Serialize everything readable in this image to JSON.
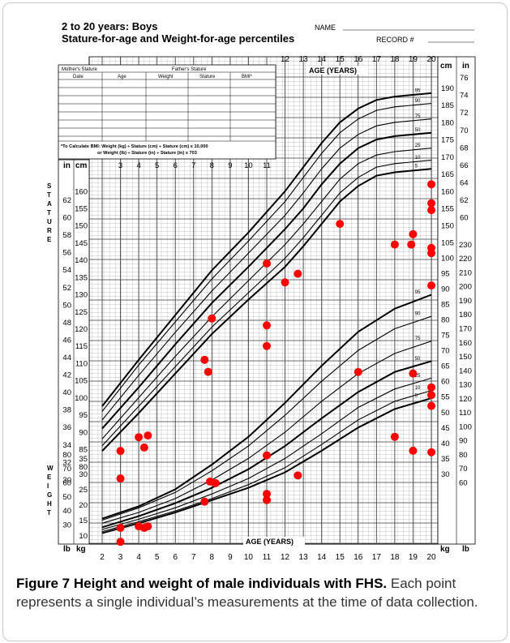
{
  "header": {
    "title_line1": "2 to 20 years: Boys",
    "title_line2": "Stature-for-age and Weight-for-age percentiles",
    "name_label": "NAME",
    "record_label": "RECORD #"
  },
  "table": {
    "top_labels": [
      "Mother's Stature",
      "Father's Stature"
    ],
    "columns": [
      "Date",
      "Age",
      "Weight",
      "Stature",
      "BMI*"
    ],
    "bmi_note_line1": "*To Calculate BMI: Weight (kg) ÷ Stature (cm) ÷ Stature (cm) x 10,000",
    "bmi_note_line2": "or Weight (lb) ÷ Stature (in) ÷ Stature (in) x 703"
  },
  "axis": {
    "age_label": "AGE (YEARS)",
    "cm": "cm",
    "in": "in",
    "kg": "kg",
    "lb": "lb",
    "stature_label": "STATURE",
    "weight_label": "WEIGHT",
    "age_ticks_top": [
      "12",
      "13",
      "14",
      "15",
      "16",
      "17",
      "18",
      "19",
      "20"
    ],
    "age_ticks_bottom": [
      "2",
      "3",
      "4",
      "5",
      "6",
      "7",
      "8",
      "9",
      "10",
      "11",
      "12",
      "13",
      "14",
      "15",
      "16",
      "17",
      "18",
      "19",
      "20"
    ],
    "age_ticks_mid": [
      "3",
      "4",
      "5",
      "6",
      "7",
      "8",
      "9",
      "10",
      "11"
    ],
    "cm_left": [
      "160",
      "155",
      "150",
      "145",
      "140",
      "135",
      "130",
      "125",
      "120",
      "115",
      "110",
      "105",
      "100",
      "95",
      "90",
      "85",
      "80"
    ],
    "in_left": [
      "62",
      "60",
      "58",
      "56",
      "54",
      "52",
      "50",
      "48",
      "46",
      "44",
      "42",
      "40",
      "38",
      "36",
      "34",
      "32",
      "30"
    ],
    "cm_right": [
      "190",
      "185",
      "180",
      "175",
      "170",
      "165",
      "160",
      "155",
      "150"
    ],
    "in_right": [
      "76",
      "74",
      "72",
      "70",
      "68",
      "66",
      "64",
      "62",
      "60"
    ],
    "kg_left": [
      "35",
      "30",
      "25",
      "20",
      "15",
      "10"
    ],
    "lb_left": [
      "80",
      "70",
      "60",
      "50",
      "40",
      "30"
    ],
    "kg_right": [
      "105",
      "100",
      "95",
      "90",
      "85",
      "80",
      "75",
      "70",
      "65",
      "60",
      "55",
      "50",
      "45",
      "40",
      "35",
      "30"
    ],
    "lb_right": [
      "230",
      "220",
      "210",
      "200",
      "190",
      "180",
      "170",
      "160",
      "150",
      "140",
      "130",
      "120",
      "110",
      "100",
      "90",
      "80",
      "70",
      "60"
    ],
    "percentiles": [
      "95",
      "90",
      "75",
      "50",
      "25",
      "10",
      "5"
    ]
  },
  "caption": {
    "label": "Figure 7 Height and weight of male individuals with FHS.",
    "text": " Each point represents a single individual’s measurements at the time of data collection."
  },
  "chart_data": {
    "type": "scatter",
    "title": "2 to 20 years: Boys Stature-for-age and Weight-for-age percentiles",
    "xlabel": "AGE (YEARS)",
    "xlim": [
      2,
      20
    ],
    "stature": {
      "ylabel": "cm",
      "ylim": [
        77,
        192
      ],
      "points": [
        {
          "x": 3.0,
          "y": 84.5
        },
        {
          "x": 3.0,
          "y": 76.5
        },
        {
          "x": 4.0,
          "y": 88.5
        },
        {
          "x": 4.3,
          "y": 85.5
        },
        {
          "x": 4.5,
          "y": 89.0
        },
        {
          "x": 7.6,
          "y": 111.0
        },
        {
          "x": 7.8,
          "y": 107.5
        },
        {
          "x": 8.0,
          "y": 123.0
        },
        {
          "x": 11.0,
          "y": 139.0
        },
        {
          "x": 11.0,
          "y": 121.0
        },
        {
          "x": 11.0,
          "y": 115.0
        },
        {
          "x": 12.0,
          "y": 133.5
        },
        {
          "x": 12.7,
          "y": 136.0
        },
        {
          "x": 15.0,
          "y": 150.5
        },
        {
          "x": 18.0,
          "y": 144.5
        },
        {
          "x": 18.9,
          "y": 144.5
        },
        {
          "x": 19.0,
          "y": 147.5
        },
        {
          "x": 20.0,
          "y": 162.0
        },
        {
          "x": 20.0,
          "y": 156.5
        },
        {
          "x": 20.0,
          "y": 154.5
        },
        {
          "x": 20.0,
          "y": 143.5
        },
        {
          "x": 20.0,
          "y": 142.0
        }
      ],
      "percentile_curves": [
        {
          "name": "95",
          "values": [
            [
              2,
              97.5
            ],
            [
              4,
              111
            ],
            [
              6,
              124
            ],
            [
              8,
              137
            ],
            [
              10,
              148
            ],
            [
              12,
              160
            ],
            [
              13,
              167
            ],
            [
              14,
              174
            ],
            [
              15,
              180
            ],
            [
              16,
              184
            ],
            [
              17,
              186.5
            ],
            [
              18,
              187.5
            ],
            [
              20,
              188.5
            ]
          ]
        },
        {
          "name": "90",
          "values": [
            [
              2,
              96
            ],
            [
              4,
              109.5
            ],
            [
              6,
              122
            ],
            [
              8,
              134.5
            ],
            [
              10,
              145.5
            ],
            [
              12,
              157
            ],
            [
              13,
              164
            ],
            [
              14,
              171
            ],
            [
              15,
              177
            ],
            [
              16,
              181
            ],
            [
              17,
              183.5
            ],
            [
              18,
              184.5
            ],
            [
              20,
              185.5
            ]
          ]
        },
        {
          "name": "75",
          "values": [
            [
              2,
              93.5
            ],
            [
              4,
              106.5
            ],
            [
              6,
              119
            ],
            [
              8,
              131
            ],
            [
              10,
              142
            ],
            [
              12,
              153
            ],
            [
              13,
              159.5
            ],
            [
              14,
              166.5
            ],
            [
              15,
              172.5
            ],
            [
              16,
              176.5
            ],
            [
              17,
              179
            ],
            [
              18,
              180
            ],
            [
              20,
              181
            ]
          ]
        },
        {
          "name": "50",
          "values": [
            [
              2,
              91
            ],
            [
              4,
              103
            ],
            [
              6,
              115.5
            ],
            [
              8,
              127.5
            ],
            [
              10,
              138
            ],
            [
              12,
              149
            ],
            [
              13,
              155
            ],
            [
              14,
              162
            ],
            [
              15,
              168
            ],
            [
              16,
              172.5
            ],
            [
              17,
              175
            ],
            [
              18,
              176
            ],
            [
              20,
              177
            ]
          ]
        },
        {
          "name": "25",
          "values": [
            [
              2,
              88
            ],
            [
              4,
              100
            ],
            [
              6,
              112
            ],
            [
              8,
              123.5
            ],
            [
              10,
              134
            ],
            [
              12,
              144.5
            ],
            [
              13,
              150.5
            ],
            [
              14,
              157
            ],
            [
              15,
              163.5
            ],
            [
              16,
              168
            ],
            [
              17,
              170.5
            ],
            [
              18,
              171.5
            ],
            [
              20,
              172.5
            ]
          ]
        },
        {
          "name": "10",
          "values": [
            [
              2,
              86
            ],
            [
              4,
              97.5
            ],
            [
              6,
              109
            ],
            [
              8,
              120.5
            ],
            [
              10,
              130.5
            ],
            [
              12,
              140.5
            ],
            [
              13,
              146.5
            ],
            [
              14,
              153
            ],
            [
              15,
              159.5
            ],
            [
              16,
              164
            ],
            [
              17,
              167
            ],
            [
              18,
              168
            ],
            [
              20,
              169
            ]
          ]
        },
        {
          "name": "5",
          "values": [
            [
              2,
              84.5
            ],
            [
              4,
              95.5
            ],
            [
              6,
              107
            ],
            [
              8,
              118.5
            ],
            [
              10,
              128.5
            ],
            [
              12,
              138
            ],
            [
              13,
              144
            ],
            [
              14,
              150.5
            ],
            [
              15,
              157
            ],
            [
              16,
              161.5
            ],
            [
              17,
              164.5
            ],
            [
              18,
              165.5
            ],
            [
              20,
              166.5
            ]
          ]
        }
      ]
    },
    "weight": {
      "ylabel": "kg",
      "ylim": [
        7,
        106
      ],
      "points": [
        {
          "x": 3.0,
          "y": 12.5
        },
        {
          "x": 3.0,
          "y": 8.0
        },
        {
          "x": 4.0,
          "y": 13.0
        },
        {
          "x": 4.3,
          "y": 12.5
        },
        {
          "x": 4.5,
          "y": 13.0
        },
        {
          "x": 7.6,
          "y": 21.0
        },
        {
          "x": 7.9,
          "y": 27.5
        },
        {
          "x": 8.2,
          "y": 27.0
        },
        {
          "x": 11.0,
          "y": 36.0
        },
        {
          "x": 11.0,
          "y": 23.5
        },
        {
          "x": 11.0,
          "y": 21.5
        },
        {
          "x": 12.7,
          "y": 29.5
        },
        {
          "x": 16.0,
          "y": 63.0
        },
        {
          "x": 18.0,
          "y": 42.0
        },
        {
          "x": 19.0,
          "y": 62.5
        },
        {
          "x": 19.0,
          "y": 37.5
        },
        {
          "x": 20.0,
          "y": 91.0
        },
        {
          "x": 20.0,
          "y": 58.0
        },
        {
          "x": 20.0,
          "y": 55.5
        },
        {
          "x": 20.0,
          "y": 52.0
        },
        {
          "x": 20.0,
          "y": 37.0
        }
      ],
      "percentile_curves": [
        {
          "name": "95",
          "values": [
            [
              2,
              15.5
            ],
            [
              4,
              19.5
            ],
            [
              6,
              25
            ],
            [
              8,
              33
            ],
            [
              10,
              42
            ],
            [
              12,
              53
            ],
            [
              14,
              65
            ],
            [
              16,
              76
            ],
            [
              18,
              83.5
            ],
            [
              20,
              88
            ]
          ]
        },
        {
          "name": "90",
          "values": [
            [
              2,
              15
            ],
            [
              4,
              19
            ],
            [
              6,
              24
            ],
            [
              8,
              31
            ],
            [
              10,
              39
            ],
            [
              12,
              49
            ],
            [
              14,
              60
            ],
            [
              16,
              70
            ],
            [
              18,
              77
            ],
            [
              20,
              81
            ]
          ]
        },
        {
          "name": "75",
          "values": [
            [
              2,
              14
            ],
            [
              4,
              17.5
            ],
            [
              6,
              22
            ],
            [
              8,
              28
            ],
            [
              10,
              35
            ],
            [
              12,
              43.5
            ],
            [
              14,
              53.5
            ],
            [
              16,
              62.5
            ],
            [
              18,
              69
            ],
            [
              20,
              73
            ]
          ]
        },
        {
          "name": "50",
          "values": [
            [
              2,
              12.7
            ],
            [
              4,
              16.3
            ],
            [
              6,
              20.5
            ],
            [
              8,
              25.5
            ],
            [
              10,
              31.5
            ],
            [
              12,
              39
            ],
            [
              14,
              48
            ],
            [
              16,
              56.5
            ],
            [
              18,
              63
            ],
            [
              20,
              66.5
            ]
          ]
        },
        {
          "name": "25",
          "values": [
            [
              2,
              12
            ],
            [
              4,
              15.3
            ],
            [
              6,
              19
            ],
            [
              8,
              23.5
            ],
            [
              10,
              28.5
            ],
            [
              12,
              35
            ],
            [
              14,
              43
            ],
            [
              16,
              51.5
            ],
            [
              18,
              57.5
            ],
            [
              20,
              61
            ]
          ]
        },
        {
          "name": "10",
          "values": [
            [
              2,
              11.3
            ],
            [
              4,
              14.5
            ],
            [
              6,
              18
            ],
            [
              8,
              22
            ],
            [
              10,
              26.5
            ],
            [
              12,
              32
            ],
            [
              14,
              39.5
            ],
            [
              16,
              47.5
            ],
            [
              18,
              53.5
            ],
            [
              20,
              57
            ]
          ]
        },
        {
          "name": "5",
          "values": [
            [
              2,
              10.8
            ],
            [
              4,
              14
            ],
            [
              6,
              17.5
            ],
            [
              8,
              21.5
            ],
            [
              10,
              25.5
            ],
            [
              12,
              30.5
            ],
            [
              14,
              37.5
            ],
            [
              16,
              45
            ],
            [
              18,
              51
            ],
            [
              20,
              54.5
            ]
          ]
        }
      ]
    }
  }
}
